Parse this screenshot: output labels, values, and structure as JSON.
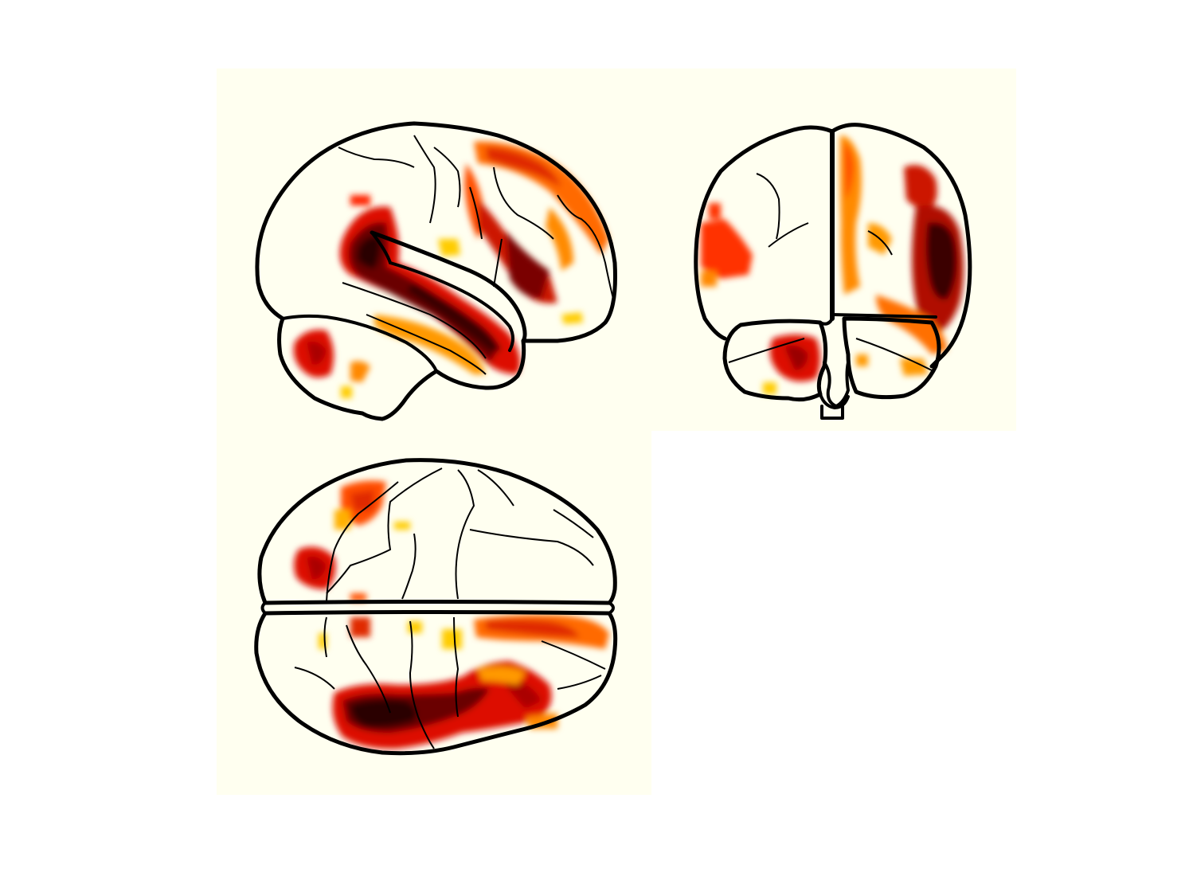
{
  "figure": {
    "type": "glass-brain",
    "views": [
      "sagittal",
      "coronal",
      "axial"
    ],
    "colormap": [
      "#ffff00",
      "#ffcc00",
      "#ff9900",
      "#ff4d00",
      "#dd1100",
      "#9a0000",
      "#3a0000"
    ],
    "background": "#fffff0",
    "outline_color": "#000000"
  }
}
